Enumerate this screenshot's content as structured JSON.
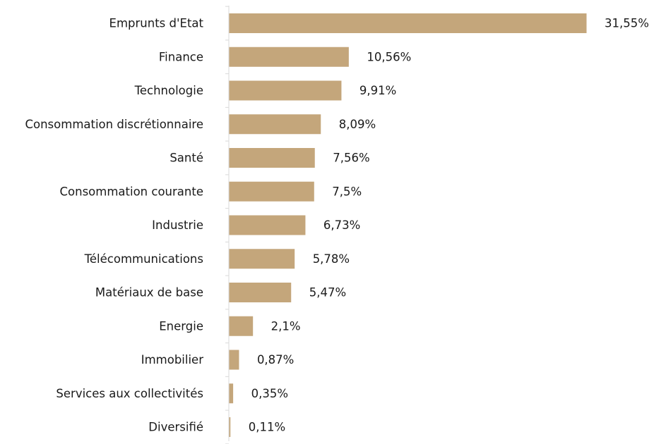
{
  "chart_data": {
    "type": "bar",
    "orientation": "horizontal",
    "categories": [
      "Emprunts d'Etat",
      "Finance",
      "Technologie",
      "Consommation discrétionnaire",
      "Santé",
      "Consommation courante",
      "Industrie",
      "Télécommunications",
      "Matériaux de base",
      "Energie",
      "Immobilier",
      "Services aux collectivités",
      "Diversifié"
    ],
    "values": [
      31.55,
      10.56,
      9.91,
      8.09,
      7.56,
      7.5,
      6.73,
      5.78,
      5.47,
      2.1,
      0.87,
      0.35,
      0.11
    ],
    "value_labels": [
      "31,55%",
      "10,56%",
      "9,91%",
      "8,09%",
      "7,56%",
      "7,5%",
      "6,73%",
      "5,78%",
      "5,47%",
      "2,1%",
      "0,87%",
      "0,35%",
      "0,11%"
    ],
    "xlim": [
      0,
      31.55
    ],
    "grid": false,
    "legend": "none",
    "bar_color": "#c4a67b",
    "axis_color": "#d9d9d9",
    "text_color": "#1a1a1a"
  }
}
